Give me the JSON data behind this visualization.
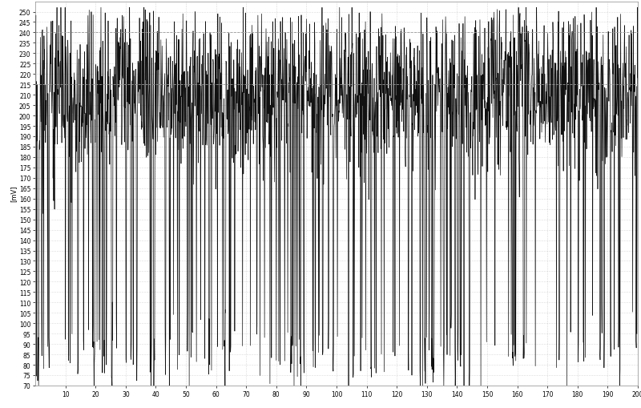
{
  "xlabel": "",
  "ylabel": "[mV]",
  "xlim": [
    0,
    200
  ],
  "ylim": [
    70,
    255
  ],
  "yticks": [
    70,
    75,
    80,
    85,
    90,
    95,
    100,
    105,
    110,
    115,
    120,
    125,
    130,
    135,
    140,
    145,
    150,
    155,
    160,
    165,
    170,
    175,
    180,
    185,
    190,
    195,
    200,
    205,
    210,
    215,
    220,
    225,
    230,
    235,
    240,
    245,
    250
  ],
  "xticks": [
    10,
    20,
    30,
    40,
    50,
    60,
    70,
    80,
    90,
    100,
    110,
    120,
    130,
    140,
    150,
    160,
    170,
    180,
    190,
    200
  ],
  "line_color": "#111111",
  "line_width": 0.5,
  "background_color": "#ffffff",
  "grid_color": "#bbbbbb",
  "grid_style": ":",
  "grid_linewidth": 0.4,
  "hline1_y": 240,
  "hline2_y": 215,
  "hline_color": "#999999",
  "hline_style": "--",
  "hline_linewidth": 0.6,
  "seed": 7777,
  "n_points": 2001,
  "mean": 205,
  "std": 30
}
